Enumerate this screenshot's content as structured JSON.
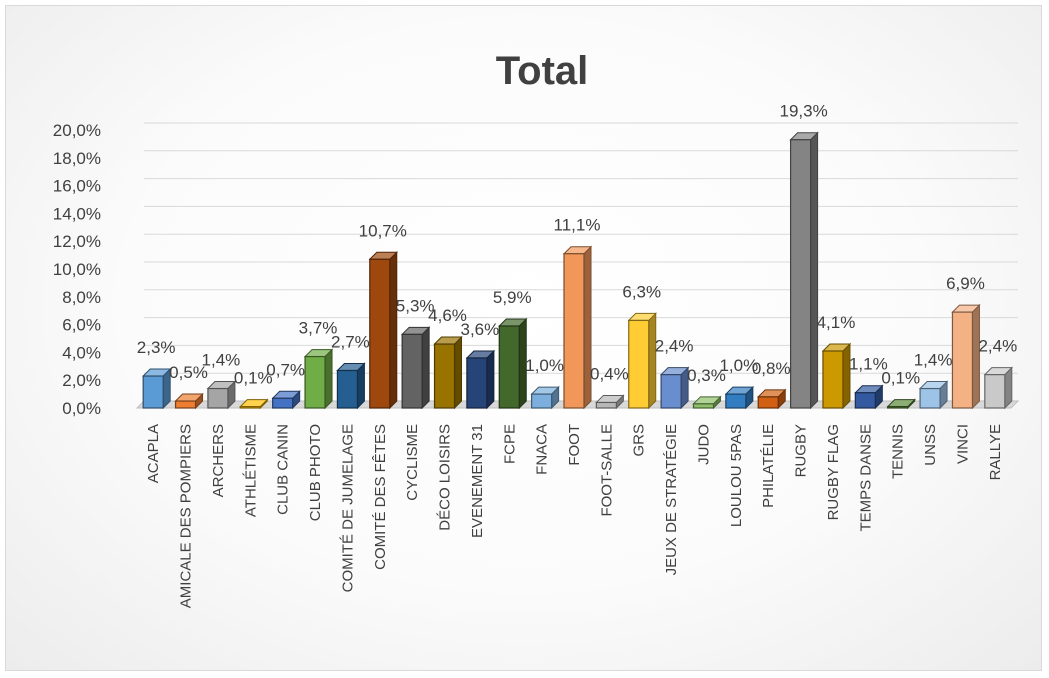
{
  "chart_data": {
    "type": "bar",
    "title": "Total",
    "categories": [
      "ACAPLA",
      "AMICALE DES POMPIERS",
      "ARCHERS",
      "ATHLÉTISME",
      "CLUB CANIN",
      "CLUB PHOTO",
      "COMITÉ DE JUMELAGE",
      "COMITÉ DES FÊTES",
      "CYCLISME",
      "DÉCO LOISIRS",
      "EVENEMENT 31",
      "FCPE",
      "FNACA",
      "FOOT",
      "FOOT-SALLE",
      "GRS",
      "JEUX DE STRATÉGIE",
      "JUDO",
      "LOULOU 5PAS",
      "PHILATÉLIE",
      "RUGBY",
      "RUGBY FLAG",
      "TEMPS DANSE",
      "TENNIS",
      "UNSS",
      "VINCI",
      "RALLYE"
    ],
    "values": [
      2.3,
      0.5,
      1.4,
      0.1,
      0.7,
      3.7,
      2.7,
      10.7,
      5.3,
      4.6,
      3.6,
      5.9,
      1.0,
      11.1,
      0.4,
      6.3,
      2.4,
      0.3,
      1.0,
      0.8,
      19.3,
      4.1,
      1.1,
      0.1,
      1.4,
      6.9,
      2.4
    ],
    "data_labels": [
      "2,3%",
      "0,5%",
      "1,4%",
      "0,1%",
      "0,7%",
      "3,7%",
      "2,7%",
      "10,7%",
      "5,3%",
      "4,6%",
      "3,6%",
      "5,9%",
      "1,0%",
      "11,1%",
      "0,4%",
      "6,3%",
      "2,4%",
      "0,3%",
      "1,0%",
      "0,8%",
      "19,3%",
      "4,1%",
      "1,1%",
      "0,1%",
      "1,4%",
      "6,9%",
      "2,4%"
    ],
    "y_ticks": [
      "0,0%",
      "2,0%",
      "4,0%",
      "6,0%",
      "8,0%",
      "10,0%",
      "12,0%",
      "14,0%",
      "16,0%",
      "18,0%",
      "20,0%"
    ],
    "ylim": [
      0,
      20
    ],
    "y_unit": "%",
    "grid": true,
    "legend": "none",
    "colors": [
      "#5b9bd5",
      "#ed7d31",
      "#a5a5a5",
      "#ffc000",
      "#4472c4",
      "#70ad47",
      "#255e91",
      "#9e480e",
      "#636363",
      "#997300",
      "#264478",
      "#43682b",
      "#7cafdd",
      "#f1975a",
      "#b7b7b7",
      "#ffcd33",
      "#698ed0",
      "#8cc168",
      "#327dc2",
      "#d26012",
      "#848484",
      "#cc9a00",
      "#335aa1",
      "#5a8a39",
      "#9dc3e6",
      "#f4b183",
      "#c9c9c9"
    ]
  }
}
